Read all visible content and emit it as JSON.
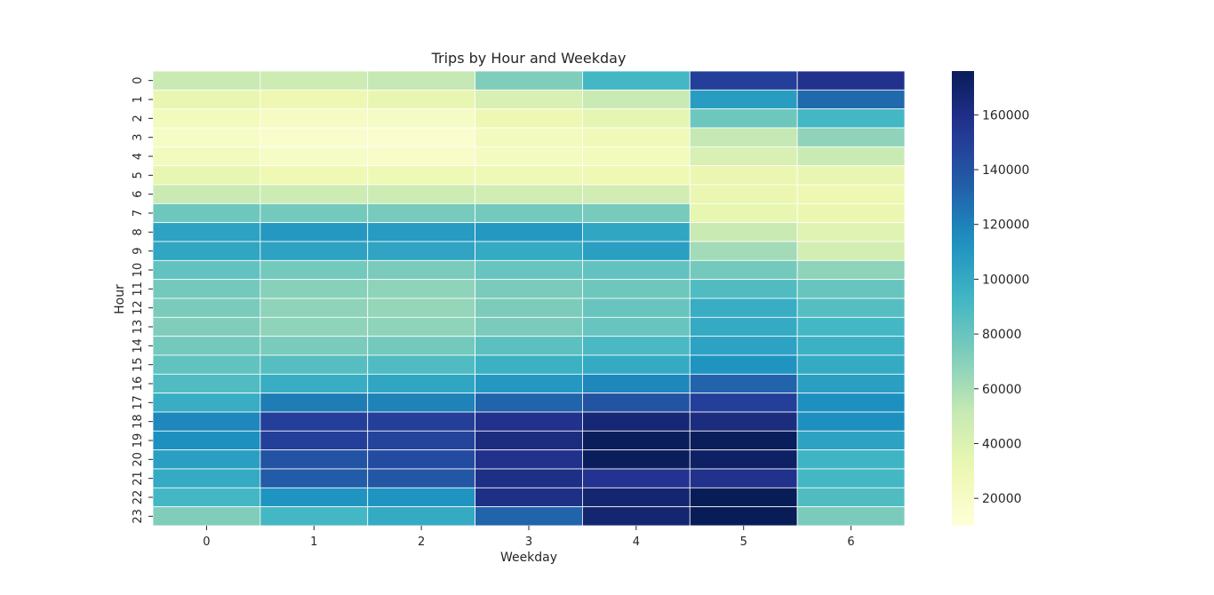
{
  "chart_data": {
    "type": "heatmap",
    "title": "Trips by Hour and Weekday",
    "xlabel": "Weekday",
    "ylabel": "Hour",
    "x_categories": [
      "0",
      "1",
      "2",
      "3",
      "4",
      "5",
      "6"
    ],
    "y_categories": [
      "0",
      "1",
      "2",
      "3",
      "4",
      "5",
      "6",
      "7",
      "8",
      "9",
      "10",
      "11",
      "12",
      "13",
      "14",
      "15",
      "16",
      "17",
      "18",
      "19",
      "20",
      "21",
      "22",
      "23"
    ],
    "colormap": "YlGnBu",
    "vmin": 10000,
    "vmax": 176000,
    "colorbar_ticks": [
      20000,
      40000,
      60000,
      80000,
      100000,
      120000,
      140000,
      160000
    ],
    "colorbar_tick_labels": [
      "20000",
      "40000",
      "60000",
      "80000",
      "100000",
      "120000",
      "140000",
      "160000"
    ],
    "grid_lines": true,
    "grid_color": "#ffffff",
    "values": [
      [
        50000,
        48000,
        52000,
        72000,
        92000,
        150000,
        158000
      ],
      [
        33000,
        30000,
        33000,
        42000,
        50000,
        107000,
        130000
      ],
      [
        25000,
        22000,
        21000,
        30000,
        35000,
        78000,
        92000
      ],
      [
        20000,
        17000,
        16000,
        24000,
        27000,
        52000,
        68000
      ],
      [
        24000,
        20000,
        19000,
        23000,
        25000,
        42000,
        50000
      ],
      [
        34000,
        29000,
        28000,
        28000,
        29000,
        32000,
        33000
      ],
      [
        50000,
        48000,
        48000,
        46000,
        46000,
        32000,
        30000
      ],
      [
        78000,
        76000,
        75000,
        76000,
        75000,
        34000,
        32000
      ],
      [
        104000,
        110000,
        108000,
        110000,
        102000,
        50000,
        38000
      ],
      [
        102000,
        104000,
        103000,
        100000,
        106000,
        62000,
        45000
      ],
      [
        82000,
        76000,
        74000,
        80000,
        82000,
        76000,
        68000
      ],
      [
        76000,
        70000,
        68000,
        74000,
        78000,
        88000,
        80000
      ],
      [
        74000,
        68000,
        66000,
        73000,
        80000,
        98000,
        86000
      ],
      [
        72000,
        68000,
        68000,
        74000,
        80000,
        100000,
        92000
      ],
      [
        76000,
        74000,
        76000,
        84000,
        90000,
        104000,
        96000
      ],
      [
        82000,
        86000,
        88000,
        96000,
        100000,
        112000,
        100000
      ],
      [
        88000,
        98000,
        102000,
        110000,
        118000,
        132000,
        106000
      ],
      [
        98000,
        122000,
        120000,
        132000,
        140000,
        150000,
        114000
      ],
      [
        118000,
        150000,
        150000,
        158000,
        166000,
        162000,
        114000
      ],
      [
        114000,
        150000,
        148000,
        162000,
        175000,
        175000,
        104000
      ],
      [
        106000,
        140000,
        144000,
        158000,
        175000,
        172000,
        94000
      ],
      [
        100000,
        136000,
        138000,
        160000,
        156000,
        158000,
        92000
      ],
      [
        92000,
        112000,
        112000,
        160000,
        168000,
        176000,
        88000
      ],
      [
        72000,
        92000,
        100000,
        132000,
        168000,
        176000,
        74000
      ]
    ]
  }
}
